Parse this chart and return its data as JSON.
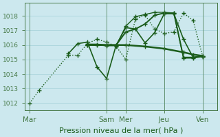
{
  "background_color": "#cce8ee",
  "grid_color": "#aad4dc",
  "line_color": "#1a5c1a",
  "ylim": [
    1011.5,
    1018.9
  ],
  "yticks": [
    1012,
    1013,
    1014,
    1015,
    1016,
    1017,
    1018
  ],
  "xlabel": "Pression niveau de la mer( hPa )",
  "xtick_labels": [
    "Mar",
    "Sam",
    "Mer",
    "Jeu",
    "Ven"
  ],
  "xtick_positions": [
    0,
    8,
    10,
    14,
    18
  ],
  "xlim": [
    -0.5,
    19.5
  ],
  "series": [
    {
      "x": [
        0,
        1,
        4,
        5,
        6,
        7,
        8,
        9,
        10,
        11,
        12,
        13,
        14,
        15,
        16,
        17,
        18
      ],
      "y": [
        1012.0,
        1012.9,
        1015.3,
        1015.3,
        1016.1,
        1016.4,
        1016.2,
        1015.9,
        1015.0,
        1017.8,
        1018.05,
        1017.1,
        1016.8,
        1016.9,
        1018.2,
        1017.7,
        1015.2
      ],
      "style": "dotted",
      "lw": 1.0
    },
    {
      "x": [
        4,
        5,
        6,
        7,
        8,
        9,
        10,
        11,
        12,
        13,
        14,
        15,
        16,
        17,
        18
      ],
      "y": [
        1015.4,
        1016.1,
        1016.2,
        1014.5,
        1013.7,
        1016.0,
        1017.2,
        1017.1,
        1016.15,
        1016.85,
        1018.15,
        1018.15,
        1016.4,
        1015.15,
        1015.25
      ],
      "style": "solid",
      "lw": 1.2
    },
    {
      "x": [
        6,
        7,
        8,
        9,
        10,
        11,
        12,
        13,
        14,
        15,
        16,
        17,
        18
      ],
      "y": [
        1016.05,
        1016.05,
        1016.0,
        1016.0,
        1016.9,
        1017.1,
        1017.45,
        1018.05,
        1018.2,
        1018.2,
        1015.15,
        1015.15,
        1015.25
      ],
      "style": "solid",
      "lw": 1.4
    },
    {
      "x": [
        6,
        7,
        8,
        9,
        10,
        11,
        12,
        13,
        14,
        15,
        16,
        17,
        18
      ],
      "y": [
        1016.0,
        1016.0,
        1015.95,
        1015.95,
        1017.3,
        1017.95,
        1018.1,
        1018.25,
        1018.25,
        1018.2,
        1015.1,
        1015.1,
        1015.2
      ],
      "style": "solid",
      "lw": 1.0
    },
    {
      "x": [
        6,
        8,
        10,
        12,
        14,
        16,
        17,
        18
      ],
      "y": [
        1016.0,
        1016.0,
        1016.0,
        1015.9,
        1015.75,
        1015.5,
        1015.35,
        1015.25
      ],
      "style": "solid",
      "lw": 1.8
    }
  ],
  "marker": "+",
  "marker_size": 4,
  "marker_lw": 1.0,
  "ytick_fontsize": 6.5,
  "xtick_fontsize": 7.5,
  "xlabel_fontsize": 8
}
